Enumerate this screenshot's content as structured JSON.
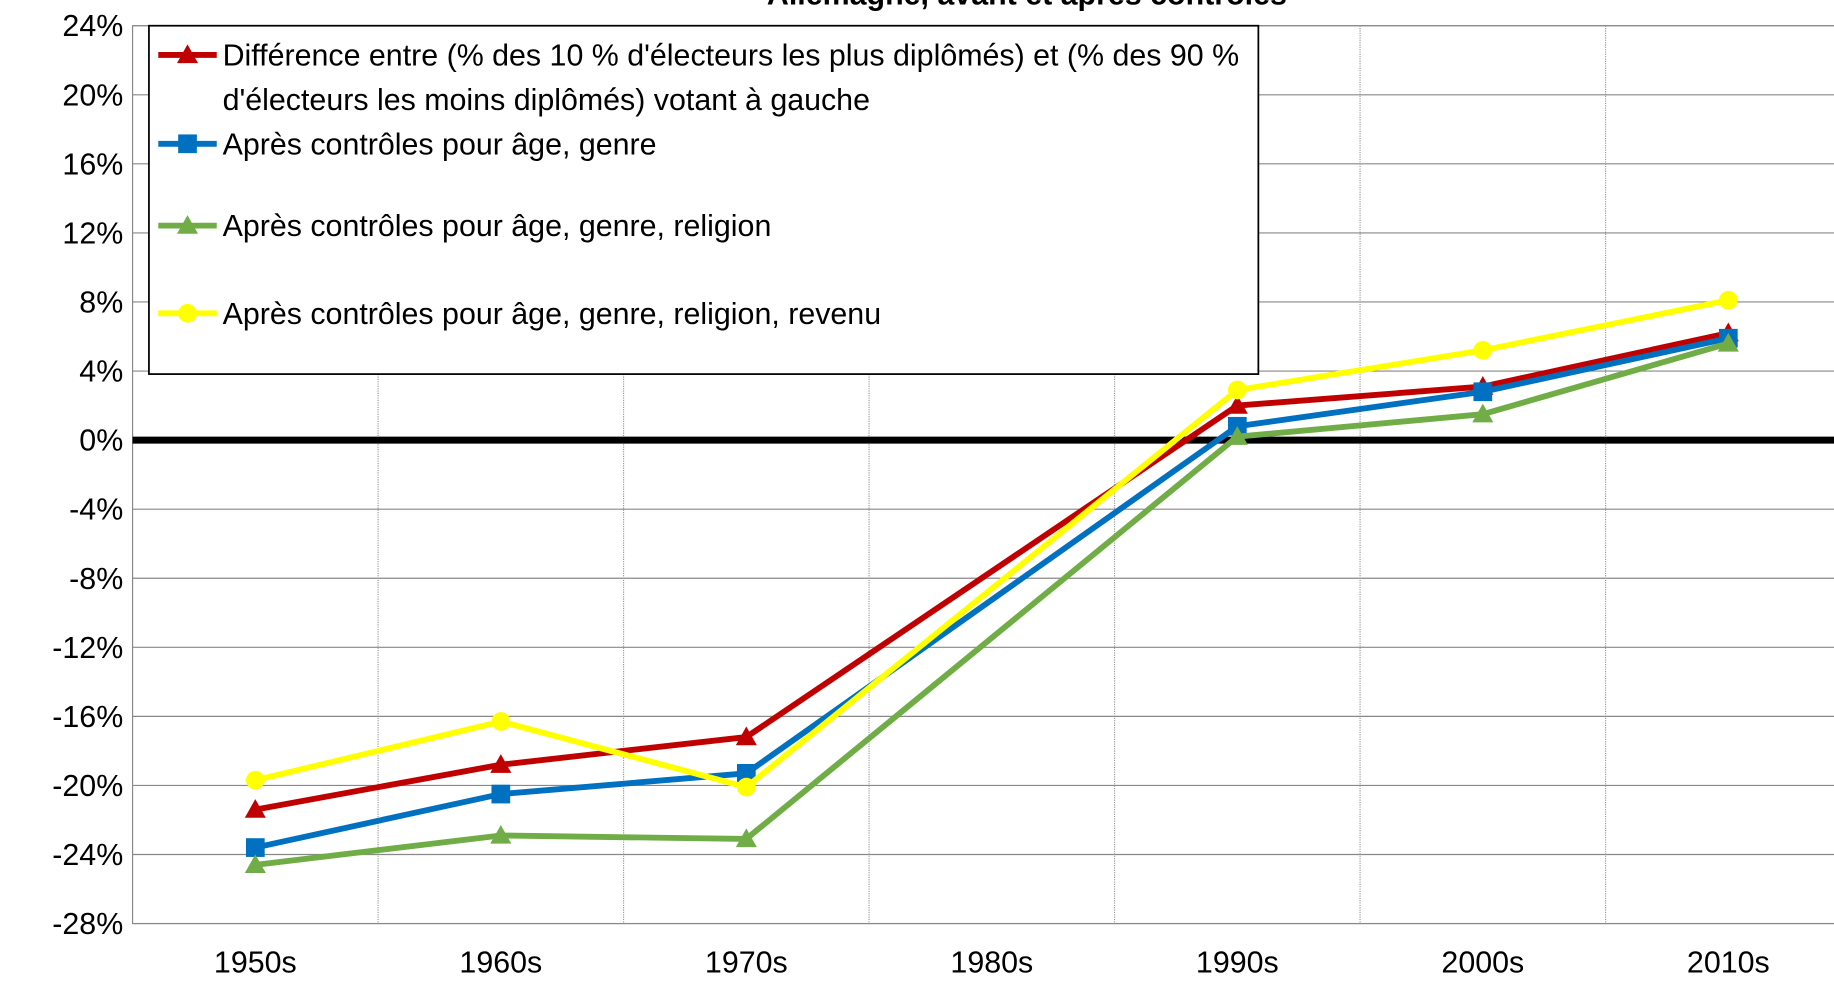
{
  "chart_data": {
    "type": "line",
    "title": "Allemagne, avant et après contrôles",
    "categories": [
      "1950s",
      "1960s",
      "1970s",
      "1980s",
      "1990s",
      "2000s",
      "2010s"
    ],
    "series": [
      {
        "name": "Différence entre (% des 10 % d'électeurs les plus diplômés) et (% des 90 % d'électeurs les moins diplômés) votant à gauche",
        "color": "#c00000",
        "marker": "triangle",
        "values": [
          -21.4,
          -18.8,
          -17.2,
          null,
          2.0,
          3.1,
          6.2
        ]
      },
      {
        "name": "Après contrôles pour âge, genre",
        "color": "#0070c0",
        "marker": "square",
        "values": [
          -23.6,
          -20.5,
          -19.3,
          null,
          0.8,
          2.8,
          5.9
        ]
      },
      {
        "name": "Après contrôles pour âge, genre, religion",
        "color": "#70ad47",
        "marker": "triangle",
        "values": [
          -24.6,
          -22.9,
          -23.1,
          null,
          0.2,
          1.5,
          5.6
        ]
      },
      {
        "name": "Après contrôles pour âge, genre, religion, revenu",
        "color": "#ffff00",
        "marker": "circle",
        "values": [
          -19.7,
          -16.3,
          -20.1,
          null,
          2.9,
          5.2,
          8.1
        ]
      }
    ],
    "ylim": [
      -28,
      24
    ],
    "yticks": [
      {
        "value": -28,
        "label": "-28%"
      },
      {
        "value": -24,
        "label": "-24%"
      },
      {
        "value": -20,
        "label": "-20%"
      },
      {
        "value": -16,
        "label": "-16%"
      },
      {
        "value": -12,
        "label": "-12%"
      },
      {
        "value": -8,
        "label": "-8%"
      },
      {
        "value": -4,
        "label": "-4%"
      },
      {
        "value": 0,
        "label": "0%"
      },
      {
        "value": 4,
        "label": "4%"
      },
      {
        "value": 8,
        "label": "8%"
      },
      {
        "value": 12,
        "label": "12%"
      },
      {
        "value": 16,
        "label": "16%"
      },
      {
        "value": 20,
        "label": "20%"
      },
      {
        "value": 24,
        "label": "24%"
      }
    ],
    "grid": true,
    "span_gaps": true,
    "legend": "upper left"
  }
}
